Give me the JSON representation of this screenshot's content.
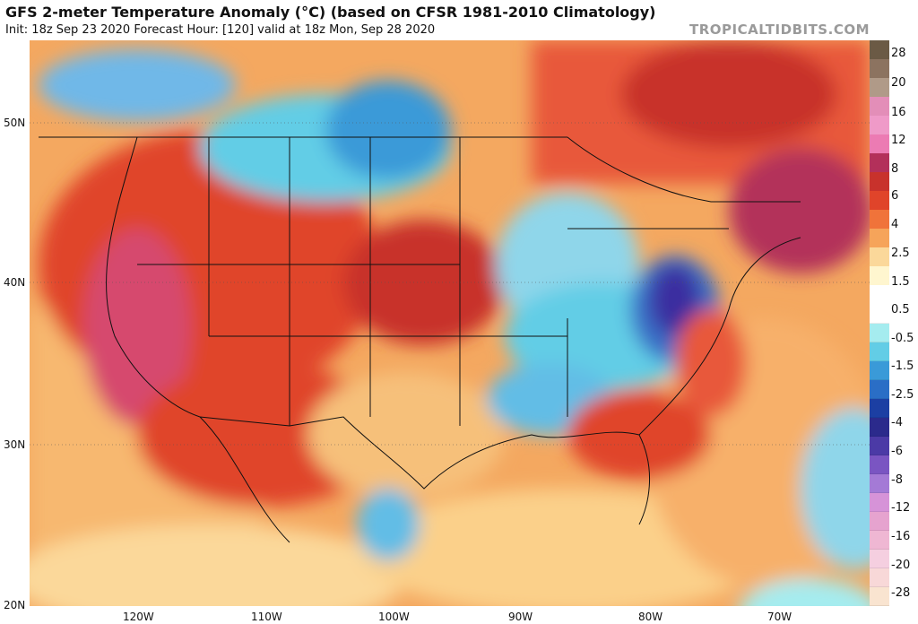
{
  "header": {
    "title": "GFS 2-meter Temperature Anomaly (°C) (based on CFSR 1981-2010 Climatology)",
    "subtitle": "Init: 18z Sep 23 2020   Forecast Hour: [120]   valid at 18z Mon, Sep 28 2020",
    "watermark": "TROPICALTIDBITS.COM"
  },
  "axes": {
    "lat_labels": [
      "50N",
      "40N",
      "30N",
      "20N"
    ],
    "lon_labels": [
      "120W",
      "110W",
      "100W",
      "90W",
      "80W",
      "70W"
    ]
  },
  "legend": {
    "labels": [
      "28",
      "20",
      "16",
      "12",
      "8",
      "6",
      "4",
      "2.5",
      "1.5",
      "0.5",
      "-0.5",
      "-1.5",
      "-2.5",
      "-4",
      "-6",
      "-8",
      "-12",
      "-16",
      "-20",
      "-28"
    ],
    "colors": [
      "#6b5a45",
      "#8c7360",
      "#b09a88",
      "#e38eb8",
      "#ef9ac8",
      "#ec7bb3",
      "#b3305a",
      "#c8322c",
      "#e0442a",
      "#f0733a",
      "#f6a45a",
      "#fbd89a",
      "#fff6cf",
      "#ffffff",
      "#ffffff",
      "#a5ecef",
      "#62cde6",
      "#3a9ad8",
      "#2a6ec6",
      "#1c3fa3",
      "#2b2a8c",
      "#4b3aa6",
      "#7a55c2",
      "#a47ad6",
      "#d693d8",
      "#e6a3cf",
      "#efb7d3",
      "#f5cfe0",
      "#f8d8d8",
      "#f9e4d0"
    ]
  },
  "colors": {
    "warm_strong": "#b4303a",
    "warm": "#e24a2c",
    "mild": "#f4a25a",
    "neutral": "#fff4cc",
    "cool": "#8fd6ea",
    "cold": "#3a7ac8",
    "very_cold": "#2b2a8c",
    "ocean_warm": "#f7b06a"
  }
}
